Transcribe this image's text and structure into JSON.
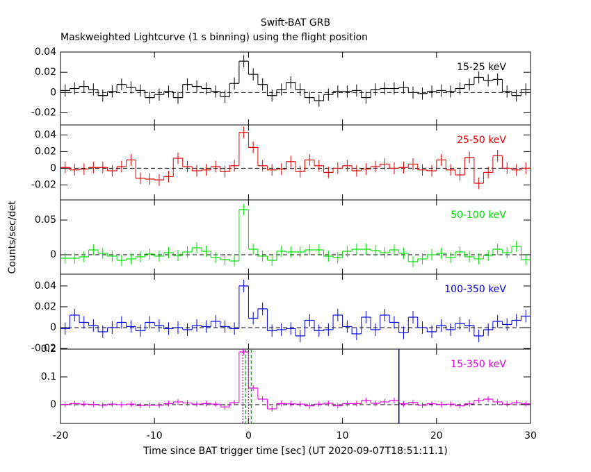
{
  "title": "Swift-BAT GRB",
  "subtitle": "Maskweighted Lightcurve (1 s binning) using the flight position",
  "xlabel": "Time since BAT trigger time [sec] (UT 2020-09-07T18:51:11.1)",
  "ylabel": "Counts/sec/det",
  "xlim": [
    -20,
    30
  ],
  "xticks": [
    -20,
    -10,
    0,
    10,
    20,
    30
  ],
  "bins": [
    -20,
    -19,
    -18,
    -17,
    -16,
    -15,
    -14,
    -13,
    -12,
    -11,
    -10,
    -9,
    -8,
    -7,
    -6,
    -5,
    -4,
    -3,
    -2,
    -1,
    0,
    1,
    2,
    3,
    4,
    5,
    6,
    7,
    8,
    9,
    10,
    11,
    12,
    13,
    14,
    15,
    16,
    17,
    18,
    19,
    20,
    21,
    22,
    23,
    24,
    25,
    26,
    27,
    28,
    29,
    30
  ],
  "chart_data": [
    {
      "type": "line",
      "series": [
        {
          "name": "15-25 keV",
          "color": "#000000",
          "error": 0.006,
          "values": [
            0.002,
            0.004,
            0.006,
            0.003,
            -0.003,
            0.001,
            0.008,
            0.005,
            0.002,
            -0.005,
            -0.002,
            0.001,
            -0.005,
            0.008,
            0.006,
            0.004,
            0.001,
            -0.004,
            0.009,
            0.031,
            0.018,
            0.008,
            -0.003,
            0.003,
            0.01,
            0.003,
            -0.005,
            -0.008,
            -0.002,
            0.001,
            0.001,
            0.002,
            -0.005,
            0.003,
            0.004,
            0.004,
            0.005,
            0,
            -0.001,
            0.001,
            0.002,
            0.001,
            0.004,
            0.008,
            0.015,
            0.012,
            0.013,
            0.001,
            -0.003,
            0.003
          ]
        }
      ],
      "ylim": [
        -0.032,
        0.04
      ],
      "yticks": [
        -0.02,
        0,
        0.02,
        0.04
      ]
    },
    {
      "type": "line",
      "series": [
        {
          "name": "25-50 keV",
          "color": "#e00000",
          "error": 0.007,
          "values": [
            0.001,
            -0.002,
            -0.001,
            0.001,
            0.001,
            -0.003,
            0.002,
            0.01,
            -0.012,
            -0.013,
            -0.014,
            -0.01,
            0.012,
            0.002,
            -0.003,
            -0.002,
            0.002,
            -0.004,
            0.003,
            0.043,
            0.025,
            0.003,
            -0.002,
            -0.001,
            0.008,
            -0.004,
            0.01,
            0.003,
            -0.005,
            0,
            0.003,
            -0.003,
            -0.001,
            0.002,
            0.005,
            0,
            0.001,
            0.005,
            -0.002,
            -0.003,
            0.01,
            -0.002,
            -0.008,
            0.013,
            -0.018,
            -0.005,
            0.015,
            0,
            -0.002,
            0
          ]
        }
      ],
      "ylim": [
        -0.038,
        0.052
      ],
      "yticks": [
        -0.02,
        0,
        0.02,
        0.04
      ]
    },
    {
      "type": "line",
      "series": [
        {
          "name": "50-100 keV",
          "color": "#00e000",
          "error": 0.008,
          "values": [
            -0.005,
            -0.005,
            -0.003,
            0.007,
            0.002,
            -0.002,
            -0.008,
            -0.006,
            -0.003,
            0.001,
            -0.002,
            0.003,
            -0.001,
            0.004,
            0.01,
            0.005,
            -0.004,
            -0.007,
            -0.009,
            0.065,
            0.008,
            -0.002,
            -0.008,
            0.005,
            0.004,
            0.004,
            0.007,
            0.007,
            -0.002,
            -0.004,
            0.005,
            0.008,
            0.008,
            0.006,
            0.003,
            0.007,
            0.002,
            -0.01,
            -0.006,
            0,
            0.002,
            -0.004,
            0.004,
            -0.003,
            -0.006,
            -0.001,
            0.008,
            0.003,
            0.012,
            -0.007
          ]
        }
      ],
      "ylim": [
        -0.028,
        0.079
      ],
      "yticks": [
        0,
        0.05
      ]
    },
    {
      "type": "line",
      "series": [
        {
          "name": "100-350 keV",
          "color": "#0000e0",
          "error": 0.006,
          "values": [
            -0.001,
            0.012,
            0.005,
            0.002,
            -0.004,
            0,
            0.005,
            0.001,
            -0.003,
            0.005,
            0.002,
            -0.001,
            0,
            -0.002,
            0.002,
            0.001,
            0.006,
            0.001,
            -0.001,
            0.04,
            0.009,
            0.018,
            -0.003,
            -0.002,
            -0.001,
            -0.008,
            0.007,
            -0.003,
            -0.002,
            0.012,
            0.001,
            -0.006,
            0.01,
            -0.002,
            0.012,
            0.005,
            -0.005,
            0.01,
            0,
            -0.004,
            0.002,
            -0.002,
            0.004,
            0.002,
            -0.008,
            -0.002,
            0.006,
            0.003,
            0.007,
            0.011
          ]
        }
      ],
      "ylim": [
        -0.0207,
        0.0513
      ],
      "yticks": [
        -0.02,
        0,
        0.02,
        0.04
      ]
    },
    {
      "type": "line",
      "series": [
        {
          "name": "15-350 keV",
          "color": "#e000e0",
          "error": 0.01,
          "values": [
            0.001,
            0.004,
            0.002,
            0.001,
            -0.002,
            0.002,
            0,
            0.002,
            -0.003,
            -0.002,
            -0.002,
            0.004,
            0.01,
            0.006,
            0.002,
            0.004,
            0.002,
            -0.008,
            0.007,
            0.19,
            0.06,
            0.02,
            -0.015,
            0.004,
            0.003,
            0.002,
            -0.004,
            0.002,
            0.005,
            -0.004,
            0.004,
            0.004,
            0.015,
            0.005,
            0.01,
            0.015,
            0.003,
            0.008,
            -0.002,
            0.003,
            0.001,
            0.002,
            -0.004,
            0.003,
            0.015,
            0.02,
            0.01,
            0.002,
            0.007,
            0.003
          ]
        }
      ],
      "ylim": [
        -0.0675,
        0.2
      ],
      "yticks": [
        0,
        0.1,
        0.2
      ],
      "markers": [
        {
          "x": -0.6,
          "color": "#e000e0",
          "style": "dotted"
        },
        {
          "x": 0,
          "color": "#e000e0",
          "style": "dotted"
        },
        {
          "x": -0.3,
          "color": "#00c000",
          "style": "dashed"
        },
        {
          "x": 0.3,
          "color": "#00c000",
          "style": "dashed"
        },
        {
          "x": 16,
          "color": "#000080",
          "style": "solid"
        }
      ]
    }
  ]
}
